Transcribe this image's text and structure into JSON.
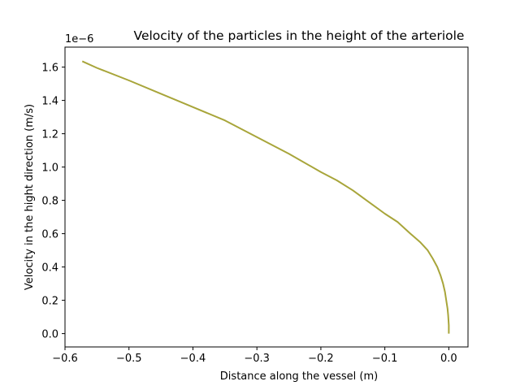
{
  "chart_data": {
    "type": "line",
    "title": "Velocity of the particles in the height of the arteriole",
    "xlabel": "Distance along the vessel (m)",
    "ylabel": "Velocity in the hight direction (m/s)",
    "offset_text": "1e−6",
    "xlim": [
      -0.6,
      0.03
    ],
    "ylim": [
      -0.08,
      1.72
    ],
    "x_ticks": [
      -0.6,
      -0.5,
      -0.4,
      -0.3,
      -0.2,
      -0.1,
      0.0
    ],
    "x_tick_labels": [
      "−0.6",
      "−0.5",
      "−0.4",
      "−0.3",
      "−0.2",
      "−0.1",
      "0.0"
    ],
    "y_ticks": [
      0.0,
      0.2,
      0.4,
      0.6,
      0.8,
      1.0,
      1.2,
      1.4,
      1.6
    ],
    "y_tick_labels": [
      "0.0",
      "0.2",
      "0.4",
      "0.6",
      "0.8",
      "1.0",
      "1.2",
      "1.4",
      "1.6"
    ],
    "grid": false,
    "series": [
      {
        "color": "#a8a53a",
        "x": [
          0.0,
          0.0,
          -0.001,
          -0.002,
          -0.004,
          -0.006,
          -0.009,
          -0.013,
          -0.018,
          -0.025,
          -0.033,
          -0.045,
          -0.06,
          -0.08,
          -0.1,
          -0.125,
          -0.15,
          -0.175,
          -0.2,
          -0.25,
          -0.3,
          -0.35,
          -0.4,
          -0.45,
          -0.5,
          -0.55,
          -0.573
        ],
        "y": [
          0.0,
          0.05,
          0.11,
          0.15,
          0.2,
          0.25,
          0.3,
          0.35,
          0.4,
          0.45,
          0.5,
          0.55,
          0.6,
          0.67,
          0.72,
          0.79,
          0.86,
          0.92,
          0.97,
          1.08,
          1.18,
          1.28,
          1.36,
          1.44,
          1.52,
          1.595,
          1.635
        ]
      }
    ]
  }
}
